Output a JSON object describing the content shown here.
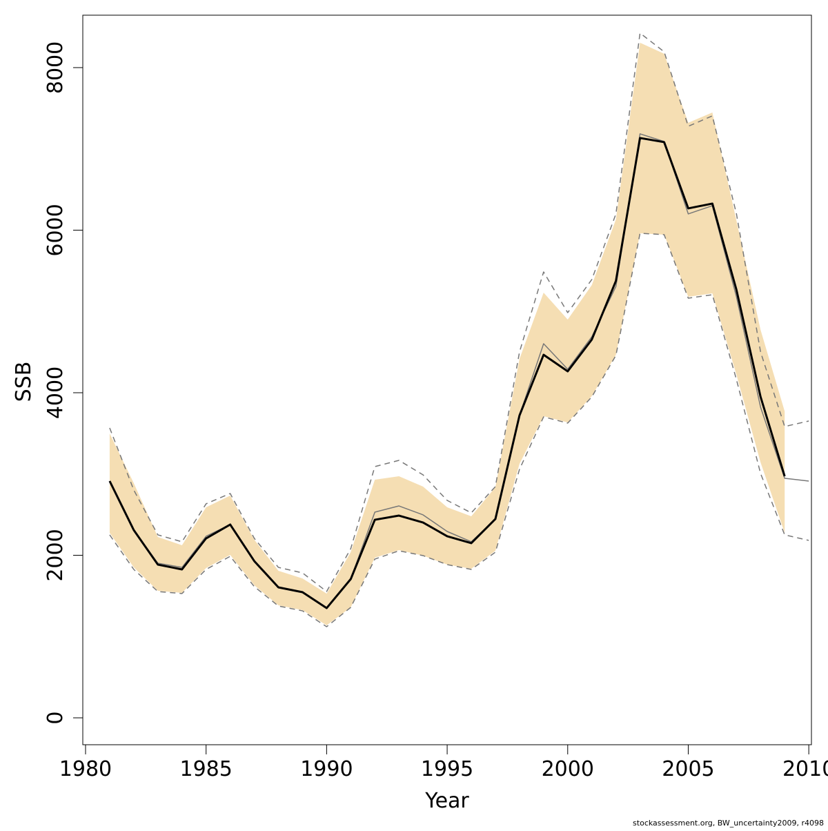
{
  "chart_data": {
    "type": "line",
    "xlabel": "Year",
    "ylabel": "SSB",
    "footnote": "stockassessment.org, BW_uncertainty2009, r4098",
    "x": [
      1981,
      1982,
      1983,
      1984,
      1985,
      1986,
      1987,
      1988,
      1989,
      1990,
      1991,
      1992,
      1993,
      1994,
      1995,
      1996,
      1997,
      1998,
      1999,
      2000,
      2001,
      2002,
      2003,
      2004,
      2005,
      2006,
      2007,
      2008,
      2009,
      2010
    ],
    "band": {
      "color": "#f5deb3",
      "upper": [
        3499,
        2887,
        2225,
        2123,
        2590,
        2735,
        2191,
        1809,
        1715,
        1529,
        2038,
        2930,
        2972,
        2845,
        2590,
        2480,
        2837,
        4416,
        5231,
        4900,
        5325,
        6132,
        8306,
        8170,
        7321,
        7448,
        6115,
        4773,
        3771,
        null
      ],
      "lower": [
        2276,
        1851,
        1563,
        1537,
        1843,
        2004,
        1631,
        1384,
        1325,
        1138,
        1359,
        1970,
        2064,
        1996,
        1885,
        1834,
        2055,
        3125,
        3711,
        3635,
        3958,
        4467,
        5962,
        5945,
        5180,
        5223,
        4221,
        3142,
        2276,
        null
      ]
    },
    "series": [
      {
        "color": "#777777",
        "dash": true,
        "width": 1.5,
        "values": [
          3567,
          2803,
          2251,
          2166,
          2633,
          2760,
          2208,
          1851,
          1783,
          1554,
          2081,
          3091,
          3168,
          2989,
          2675,
          2522,
          2845,
          4501,
          5486,
          4985,
          5393,
          6200,
          8425,
          8195,
          7278,
          7406,
          6200,
          4501,
          3584,
          3652
        ]
      },
      {
        "color": "#777777",
        "dash": true,
        "width": 1.5,
        "values": [
          2251,
          1826,
          1554,
          1529,
          1826,
          1987,
          1614,
          1376,
          1316,
          1121,
          1359,
          1953,
          2055,
          1996,
          1885,
          1826,
          2038,
          3057,
          3703,
          3626,
          3949,
          4459,
          5962,
          5945,
          5163,
          5206,
          4161,
          3006,
          2251,
          2183
        ]
      },
      {
        "color": "#777777",
        "dash": false,
        "width": 1.5,
        "values": [
          2913,
          2310,
          1902,
          1851,
          2234,
          2378,
          1928,
          1605,
          1546,
          1350,
          1707,
          2531,
          2607,
          2497,
          2293,
          2166,
          2446,
          3720,
          4603,
          4289,
          4688,
          5308,
          7185,
          7091,
          6200,
          6301,
          5180,
          3822,
          2947,
          2913
        ]
      },
      {
        "color": "#000000",
        "dash": false,
        "width": 3,
        "values": [
          2913,
          2310,
          1885,
          1826,
          2208,
          2378,
          1928,
          1605,
          1546,
          1350,
          1707,
          2437,
          2488,
          2403,
          2234,
          2149,
          2446,
          3720,
          4467,
          4263,
          4654,
          5376,
          7134,
          7083,
          6268,
          6327,
          5265,
          3949,
          2972,
          null
        ]
      }
    ],
    "xlim": [
      1979.886,
      2010.11
    ],
    "ylim": [
      -331,
      8645
    ],
    "xticks": [
      1980,
      1985,
      1990,
      1995,
      2000,
      2005,
      2010
    ],
    "yticks": [
      0,
      2000,
      4000,
      6000,
      8000
    ]
  }
}
